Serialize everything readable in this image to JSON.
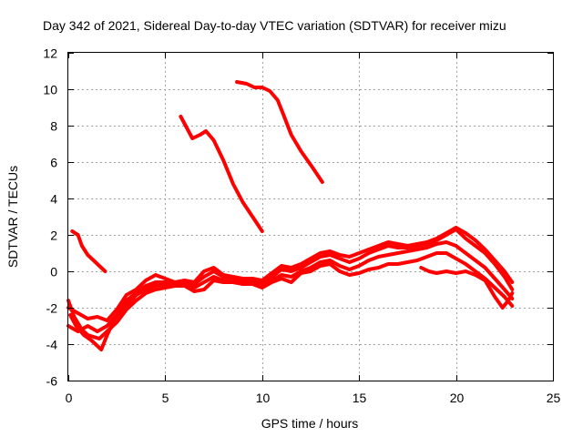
{
  "chart_data": {
    "type": "line",
    "title": "Day 342 of 2021, Sidereal Day-to-day VTEC variation (SDTVAR) for receiver mizu",
    "xlabel": "GPS time / hours",
    "ylabel": "SDTVAR / TECUs",
    "xlim": [
      0,
      25
    ],
    "ylim": [
      -6,
      12
    ],
    "xticks": [
      0,
      5,
      10,
      15,
      20,
      25
    ],
    "yticks": [
      -6,
      -4,
      -2,
      0,
      2,
      4,
      6,
      8,
      10,
      12
    ],
    "grid": true,
    "color": "#ff0000",
    "series": [
      {
        "name": "arc-morning-upper",
        "points": [
          [
            0.2,
            2.2
          ],
          [
            0.5,
            2.0
          ],
          [
            0.7,
            1.4
          ],
          [
            1.0,
            0.9
          ],
          [
            1.3,
            0.6
          ],
          [
            1.6,
            0.3
          ],
          [
            1.9,
            0.0
          ]
        ]
      },
      {
        "name": "arc-midday-descent",
        "points": [
          [
            5.8,
            8.5
          ],
          [
            6.1,
            7.9
          ],
          [
            6.4,
            7.3
          ],
          [
            6.8,
            7.5
          ],
          [
            7.1,
            7.7
          ],
          [
            7.5,
            7.2
          ],
          [
            8.0,
            6.1
          ],
          [
            8.5,
            4.8
          ],
          [
            9.0,
            3.8
          ],
          [
            9.5,
            3.0
          ],
          [
            10.0,
            2.2
          ]
        ]
      },
      {
        "name": "arc-midday-high",
        "points": [
          [
            8.7,
            10.4
          ],
          [
            9.2,
            10.3
          ],
          [
            9.6,
            10.1
          ],
          [
            10.0,
            10.1
          ],
          [
            10.4,
            9.9
          ],
          [
            10.8,
            9.4
          ],
          [
            11.1,
            8.6
          ],
          [
            11.5,
            7.5
          ],
          [
            12.0,
            6.6
          ],
          [
            12.6,
            5.7
          ],
          [
            13.1,
            4.9
          ]
        ]
      },
      {
        "name": "arc-a",
        "points": [
          [
            0.0,
            -1.6
          ],
          [
            0.3,
            -2.5
          ],
          [
            0.7,
            -3.2
          ],
          [
            1.0,
            -3.5
          ],
          [
            1.3,
            -3.6
          ],
          [
            1.6,
            -3.7
          ],
          [
            1.8,
            -3.5
          ],
          [
            2.1,
            -3.2
          ],
          [
            2.5,
            -2.8
          ],
          [
            3.0,
            -2.1
          ],
          [
            3.5,
            -1.6
          ],
          [
            4.0,
            -1.2
          ],
          [
            4.5,
            -1.0
          ],
          [
            5.0,
            -0.9
          ],
          [
            5.5,
            -0.8
          ],
          [
            6.0,
            -0.8
          ],
          [
            6.5,
            -1.1
          ],
          [
            7.0,
            -1.0
          ],
          [
            7.5,
            -0.5
          ],
          [
            8.0,
            -0.6
          ],
          [
            8.5,
            -0.6
          ],
          [
            9.0,
            -0.7
          ],
          [
            9.5,
            -0.7
          ],
          [
            10.0,
            -0.9
          ],
          [
            10.5,
            -0.6
          ],
          [
            11.0,
            -0.4
          ],
          [
            11.5,
            -0.6
          ],
          [
            12.0,
            -0.1
          ],
          [
            12.5,
            0.0
          ],
          [
            13.0,
            0.3
          ],
          [
            13.5,
            0.4
          ],
          [
            14.0,
            0.0
          ],
          [
            14.5,
            -0.2
          ],
          [
            15.0,
            -0.1
          ],
          [
            15.5,
            0.1
          ],
          [
            16.0,
            0.2
          ],
          [
            16.5,
            0.4
          ],
          [
            17.0,
            0.4
          ],
          [
            17.5,
            0.5
          ],
          [
            18.0,
            0.6
          ],
          [
            18.5,
            0.8
          ],
          [
            19.0,
            1.0
          ],
          [
            19.5,
            1.0
          ],
          [
            20.0,
            0.7
          ],
          [
            20.5,
            0.4
          ],
          [
            21.0,
            0.0
          ],
          [
            21.5,
            -0.4
          ],
          [
            22.0,
            -0.9
          ],
          [
            22.5,
            -1.4
          ],
          [
            22.9,
            -1.9
          ]
        ]
      },
      {
        "name": "arc-b",
        "points": [
          [
            0.1,
            -2.4
          ],
          [
            0.4,
            -3.0
          ],
          [
            0.8,
            -3.5
          ],
          [
            1.2,
            -3.8
          ],
          [
            1.5,
            -4.1
          ],
          [
            1.7,
            -4.3
          ],
          [
            2.0,
            -3.5
          ],
          [
            2.4,
            -2.6
          ],
          [
            3.0,
            -1.9
          ],
          [
            3.5,
            -1.3
          ],
          [
            4.0,
            -1.0
          ],
          [
            4.5,
            -0.8
          ],
          [
            5.0,
            -0.7
          ],
          [
            5.5,
            -0.8
          ],
          [
            6.0,
            -0.7
          ],
          [
            6.5,
            -0.9
          ],
          [
            7.0,
            -0.6
          ],
          [
            7.5,
            -0.3
          ],
          [
            8.0,
            -0.5
          ],
          [
            8.5,
            -0.6
          ],
          [
            9.0,
            -0.6
          ],
          [
            9.5,
            -0.6
          ],
          [
            10.0,
            -0.8
          ],
          [
            10.5,
            -0.5
          ],
          [
            11.0,
            -0.2
          ],
          [
            11.5,
            -0.3
          ],
          [
            12.0,
            0.0
          ],
          [
            12.5,
            0.2
          ],
          [
            13.0,
            0.5
          ],
          [
            13.5,
            0.6
          ],
          [
            14.0,
            0.3
          ],
          [
            14.5,
            0.1
          ],
          [
            15.0,
            0.3
          ],
          [
            15.5,
            0.6
          ],
          [
            16.0,
            0.8
          ],
          [
            16.5,
            0.9
          ],
          [
            17.0,
            1.0
          ],
          [
            17.5,
            1.1
          ],
          [
            18.0,
            1.2
          ],
          [
            18.5,
            1.3
          ],
          [
            19.0,
            1.5
          ],
          [
            19.5,
            1.6
          ],
          [
            20.0,
            1.4
          ],
          [
            20.5,
            1.0
          ],
          [
            21.0,
            0.6
          ],
          [
            21.5,
            0.2
          ],
          [
            22.0,
            -0.4
          ],
          [
            22.5,
            -1.0
          ],
          [
            22.9,
            -1.5
          ]
        ]
      },
      {
        "name": "arc-c",
        "points": [
          [
            0.0,
            -3.0
          ],
          [
            0.5,
            -3.3
          ],
          [
            1.0,
            -3.0
          ],
          [
            1.5,
            -3.3
          ],
          [
            2.0,
            -3.0
          ],
          [
            2.5,
            -2.4
          ],
          [
            3.0,
            -1.6
          ],
          [
            3.5,
            -1.2
          ],
          [
            4.0,
            -0.8
          ],
          [
            4.5,
            -0.6
          ],
          [
            5.0,
            -0.6
          ],
          [
            5.5,
            -0.7
          ],
          [
            6.0,
            -0.6
          ],
          [
            6.5,
            -0.7
          ],
          [
            7.0,
            -0.3
          ],
          [
            7.5,
            0.0
          ],
          [
            8.0,
            -0.3
          ],
          [
            8.5,
            -0.4
          ],
          [
            9.0,
            -0.5
          ],
          [
            9.5,
            -0.5
          ],
          [
            10.0,
            -0.6
          ],
          [
            10.5,
            -0.3
          ],
          [
            11.0,
            0.1
          ],
          [
            11.5,
            0.0
          ],
          [
            12.0,
            0.2
          ],
          [
            12.5,
            0.5
          ],
          [
            13.0,
            0.8
          ],
          [
            13.5,
            0.9
          ],
          [
            14.0,
            0.7
          ],
          [
            14.5,
            0.5
          ],
          [
            15.0,
            0.7
          ],
          [
            15.5,
            1.0
          ],
          [
            16.0,
            1.2
          ],
          [
            16.5,
            1.4
          ],
          [
            17.0,
            1.3
          ],
          [
            17.5,
            1.3
          ],
          [
            18.0,
            1.4
          ],
          [
            18.5,
            1.5
          ],
          [
            19.0,
            1.7
          ],
          [
            19.5,
            2.0
          ],
          [
            20.0,
            2.3
          ],
          [
            20.5,
            1.8
          ],
          [
            21.0,
            1.4
          ],
          [
            21.5,
            1.0
          ],
          [
            22.0,
            0.4
          ],
          [
            22.5,
            -0.3
          ],
          [
            22.9,
            -1.0
          ]
        ]
      },
      {
        "name": "arc-d",
        "points": [
          [
            0.0,
            -2.0
          ],
          [
            0.5,
            -2.3
          ],
          [
            1.0,
            -2.6
          ],
          [
            1.5,
            -2.5
          ],
          [
            2.0,
            -2.7
          ],
          [
            2.5,
            -2.1
          ],
          [
            3.0,
            -1.3
          ],
          [
            3.5,
            -1.0
          ],
          [
            4.0,
            -0.5
          ],
          [
            4.5,
            -0.2
          ],
          [
            5.0,
            -0.4
          ],
          [
            5.5,
            -0.6
          ],
          [
            6.0,
            -0.5
          ],
          [
            6.5,
            -0.6
          ],
          [
            7.0,
            0.0
          ],
          [
            7.5,
            0.2
          ],
          [
            8.0,
            -0.2
          ],
          [
            8.5,
            -0.3
          ],
          [
            9.0,
            -0.4
          ],
          [
            9.5,
            -0.4
          ],
          [
            10.0,
            -0.5
          ],
          [
            10.5,
            -0.1
          ],
          [
            11.0,
            0.3
          ],
          [
            11.5,
            0.2
          ],
          [
            12.0,
            0.4
          ],
          [
            12.5,
            0.7
          ],
          [
            13.0,
            1.0
          ],
          [
            13.5,
            1.1
          ],
          [
            14.0,
            0.9
          ],
          [
            14.5,
            0.8
          ],
          [
            15.0,
            1.0
          ],
          [
            15.5,
            1.2
          ],
          [
            16.0,
            1.4
          ],
          [
            16.5,
            1.6
          ],
          [
            17.0,
            1.5
          ],
          [
            17.5,
            1.4
          ],
          [
            18.0,
            1.5
          ],
          [
            18.5,
            1.6
          ],
          [
            19.0,
            1.8
          ],
          [
            19.5,
            2.1
          ],
          [
            20.0,
            2.4
          ],
          [
            20.5,
            2.1
          ],
          [
            21.0,
            1.7
          ],
          [
            21.5,
            1.2
          ],
          [
            22.0,
            0.6
          ],
          [
            22.5,
            0.0
          ],
          [
            22.9,
            -0.6
          ]
        ]
      },
      {
        "name": "arc-late-lower",
        "points": [
          [
            18.2,
            0.2
          ],
          [
            18.6,
            0.0
          ],
          [
            19.0,
            -0.1
          ],
          [
            19.5,
            0.0
          ],
          [
            20.0,
            -0.1
          ],
          [
            20.5,
            0.0
          ],
          [
            21.0,
            -0.2
          ],
          [
            21.5,
            -0.5
          ],
          [
            22.0,
            -1.4
          ],
          [
            22.4,
            -2.0
          ],
          [
            22.7,
            -1.6
          ],
          [
            22.9,
            -1.2
          ]
        ]
      }
    ]
  }
}
